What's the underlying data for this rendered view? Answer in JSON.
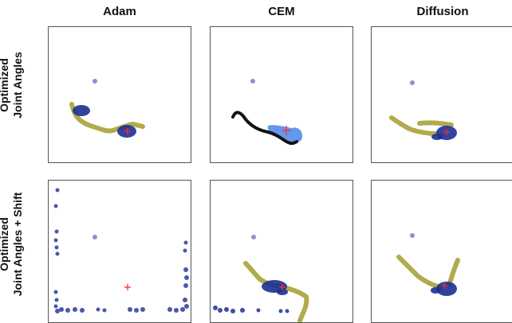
{
  "columns": [
    "Adam",
    "CEM",
    "Diffusion"
  ],
  "rows": [
    [
      "Optimized",
      "Joint Angles"
    ],
    [
      "Optimized",
      "Joint Angles + Shift"
    ]
  ],
  "colors": {
    "trajectory": "#a8a237",
    "cluster": "#1c2f94",
    "cem_trajectory": "#111111",
    "cem_cloud": "#3d7ee8",
    "target_marker": "#ff2a2a",
    "goal_point": "#6f74c8"
  }
}
